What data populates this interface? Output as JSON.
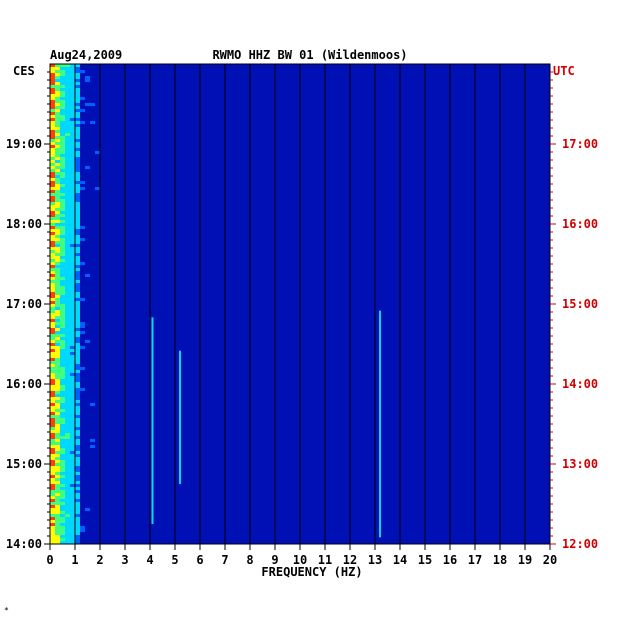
{
  "chart_data": {
    "type": "heatmap",
    "title": "RWMO HHZ BW 01 (Wildenmoos)",
    "date": "Aug24,2009",
    "xlabel": "FREQUENCY (HZ)",
    "xlim": [
      0,
      20
    ],
    "x_ticks": [
      "0",
      "1",
      "2",
      "3",
      "4",
      "5",
      "6",
      "7",
      "8",
      "9",
      "10",
      "11",
      "12",
      "13",
      "14",
      "15",
      "16",
      "17",
      "18",
      "19",
      "20"
    ],
    "left_axis": {
      "timezone": "CES",
      "tick_labels": [
        "19:00",
        "18:00",
        "17:00",
        "16:00",
        "15:00",
        "14:00"
      ]
    },
    "right_axis": {
      "timezone": "UTC",
      "tick_labels": [
        "17:00",
        "16:00",
        "15:00",
        "14:00",
        "13:00",
        "12:00"
      ],
      "color": "#d00000"
    },
    "time_range_ces": [
      "14:00",
      "19:41"
    ],
    "colormap": [
      "#0000c8",
      "#0060ff",
      "#00d8ff",
      "#40ff80",
      "#ffff00",
      "#ff4000"
    ],
    "background_color": "#0010b4",
    "features": [
      {
        "description": "strong low-frequency energy",
        "freq_range_hz": [
          0,
          1.2
        ]
      },
      {
        "description": "persistent spectral line",
        "freq_hz": 13.2,
        "time_ces": [
          "14:05",
          "16:55"
        ]
      },
      {
        "description": "spectral line",
        "freq_hz": 4.1,
        "time_ces": [
          "14:15",
          "16:50"
        ]
      },
      {
        "description": "spectral line",
        "freq_hz": 5.2,
        "time_ces": [
          "14:45",
          "16:25"
        ]
      }
    ]
  },
  "corner_mark": "*"
}
